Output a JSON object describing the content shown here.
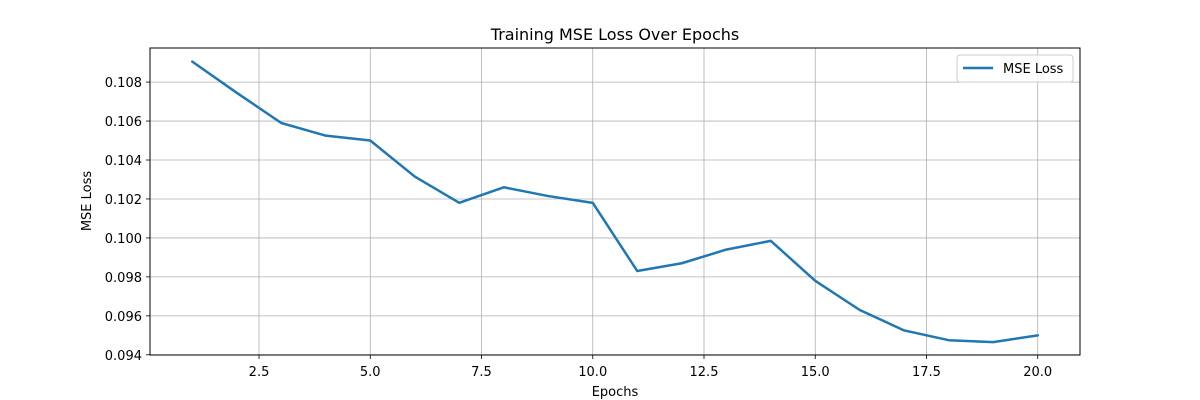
{
  "chart_data": {
    "type": "line",
    "title": "Training MSE Loss Over Epochs",
    "xlabel": "Epochs",
    "ylabel": "MSE Loss",
    "xlim": [
      0.05,
      20.95
    ],
    "ylim": [
      0.09399,
      0.10975
    ],
    "xticks": [
      2.5,
      5.0,
      7.5,
      10.0,
      12.5,
      15.0,
      17.5,
      20.0
    ],
    "xtick_labels": [
      "2.5",
      "5.0",
      "7.5",
      "10.0",
      "12.5",
      "15.0",
      "17.5",
      "20.0"
    ],
    "yticks": [
      0.094,
      0.096,
      0.098,
      0.1,
      0.102,
      0.104,
      0.106,
      0.108
    ],
    "ytick_labels": [
      "0.094",
      "0.096",
      "0.098",
      "0.100",
      "0.102",
      "0.104",
      "0.106",
      "0.108"
    ],
    "grid": true,
    "legend_position": "top-right",
    "series": [
      {
        "name": "MSE Loss",
        "color": "#1f77b4",
        "x": [
          1,
          2,
          3,
          4,
          5,
          6,
          7,
          8,
          9,
          10,
          11,
          12,
          13,
          14,
          15,
          16,
          17,
          18,
          19,
          20
        ],
        "y": [
          0.10905,
          0.10745,
          0.1059,
          0.10525,
          0.105,
          0.10315,
          0.1018,
          0.1026,
          0.10215,
          0.1018,
          0.0983,
          0.0987,
          0.0994,
          0.09985,
          0.0978,
          0.0963,
          0.09525,
          0.09475,
          0.09465,
          0.095
        ]
      }
    ]
  }
}
